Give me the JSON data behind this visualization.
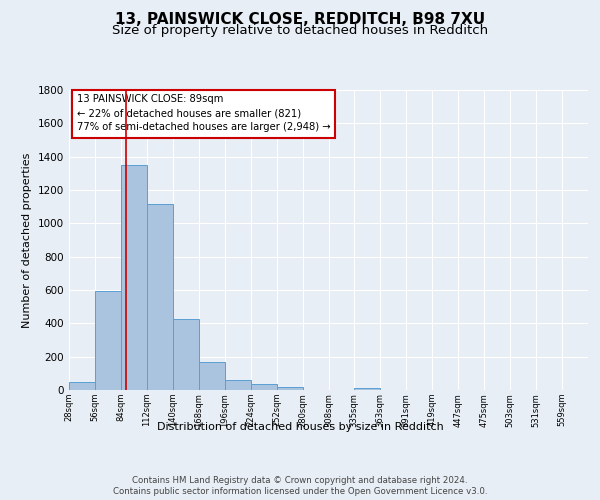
{
  "title_line1": "13, PAINSWICK CLOSE, REDDITCH, B98 7XU",
  "title_line2": "Size of property relative to detached houses in Redditch",
  "xlabel": "Distribution of detached houses by size in Redditch",
  "ylabel": "Number of detached properties",
  "footer_line1": "Contains HM Land Registry data © Crown copyright and database right 2024.",
  "footer_line2": "Contains public sector information licensed under the Open Government Licence v3.0.",
  "bar_edges": [
    28,
    56,
    84,
    112,
    140,
    168,
    196,
    224,
    252,
    280,
    308,
    335,
    363,
    391,
    419,
    447,
    475,
    503,
    531,
    559,
    587
  ],
  "bar_heights": [
    50,
    595,
    1350,
    1115,
    425,
    170,
    60,
    38,
    18,
    0,
    0,
    15,
    0,
    0,
    0,
    0,
    0,
    0,
    0,
    0
  ],
  "bar_color": "#aac4e0",
  "bar_edge_color": "#5a9fd4",
  "vline_x": 89,
  "vline_color": "#cc0000",
  "annotation_text": "13 PAINSWICK CLOSE: 89sqm\n← 22% of detached houses are smaller (821)\n77% of semi-detached houses are larger (2,948) →",
  "annotation_box_color": "#cc0000",
  "annotation_text_color": "#000000",
  "ylim": [
    0,
    1800
  ],
  "yticks": [
    0,
    200,
    400,
    600,
    800,
    1000,
    1200,
    1400,
    1600,
    1800
  ],
  "bg_color": "#e8eef5",
  "plot_bg_color": "#e8eef5",
  "grid_color": "#ffffff",
  "title_fontsize": 11,
  "subtitle_fontsize": 9.5
}
